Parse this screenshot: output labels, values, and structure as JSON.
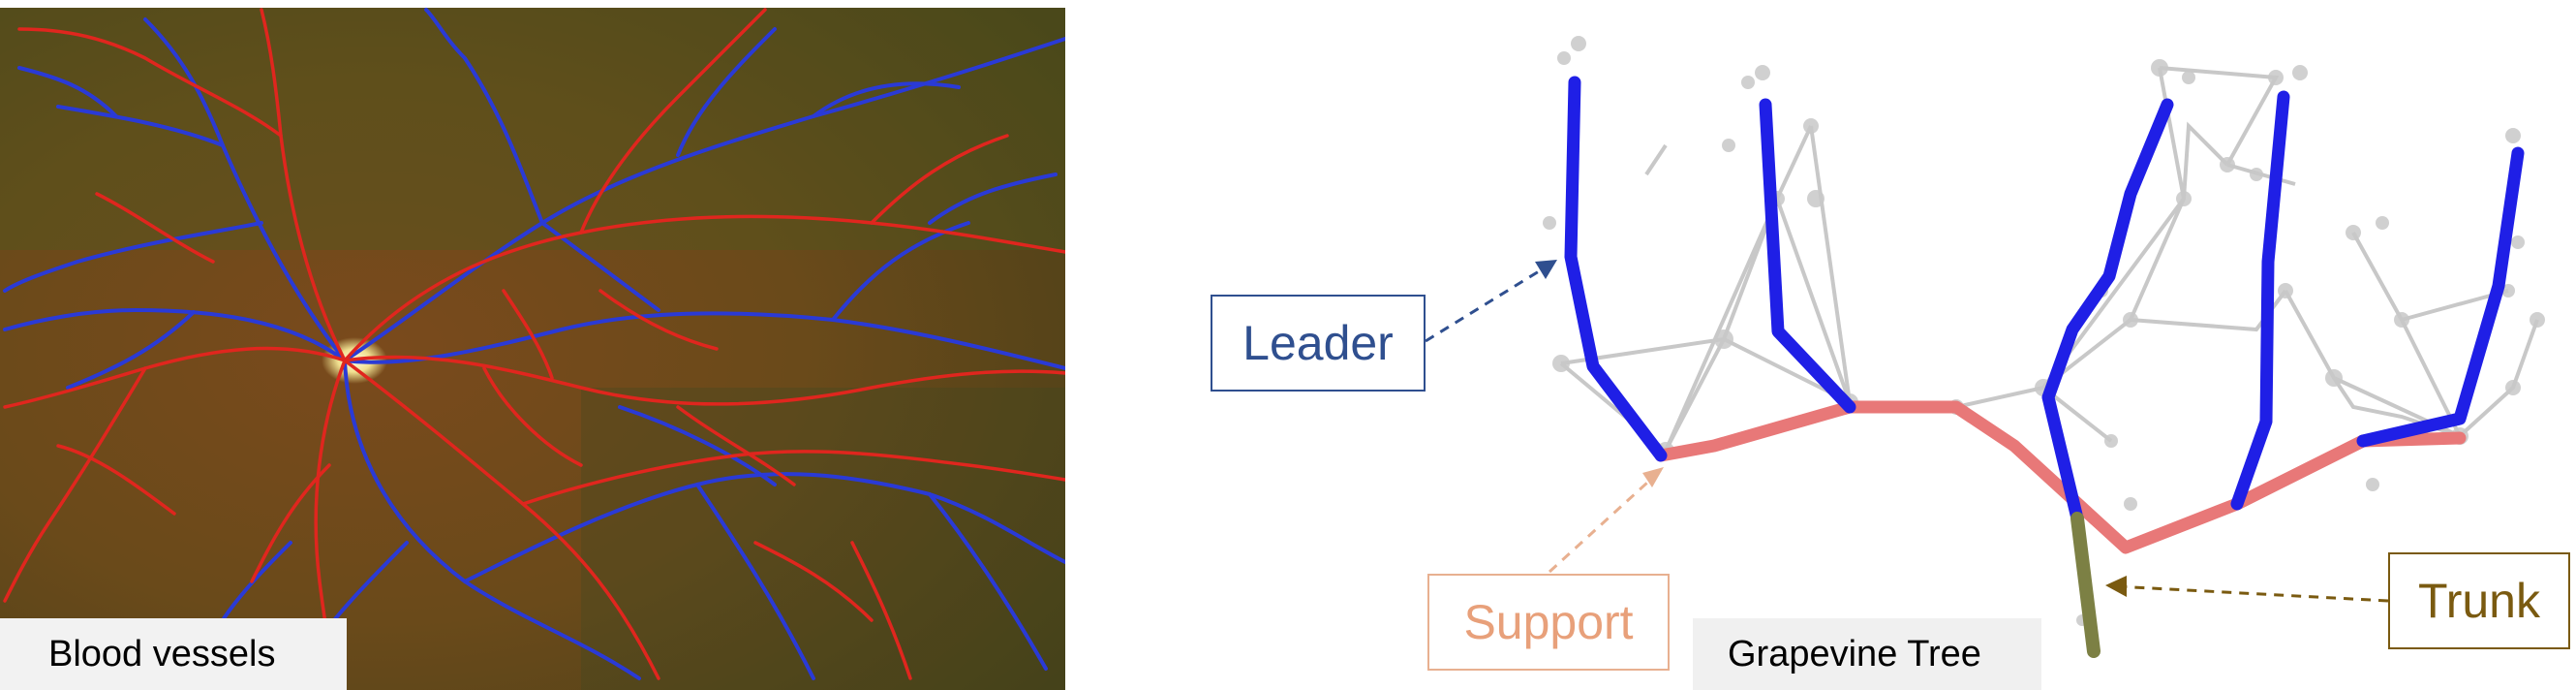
{
  "figure": {
    "left_panel": {
      "caption": "Blood vessels"
    },
    "right_panel": {
      "caption": "Grapevine Tree",
      "labels": {
        "leader": "Leader",
        "support": "Support",
        "trunk": "Trunk"
      }
    }
  },
  "colors": {
    "vein": "#2a3ad6",
    "artery": "#e0261e",
    "leader": "#1f1fe6",
    "support": "#e87878",
    "trunk": "#7c8044",
    "skeleton": "#c8c8c8",
    "leader_label": "#2f4f8f",
    "support_label": "#e8a07a",
    "trunk_label": "#7a5a10"
  },
  "icons": [
    "optic-disc",
    "dashed-arrow-leader",
    "dashed-arrow-support",
    "dashed-arrow-trunk"
  ]
}
